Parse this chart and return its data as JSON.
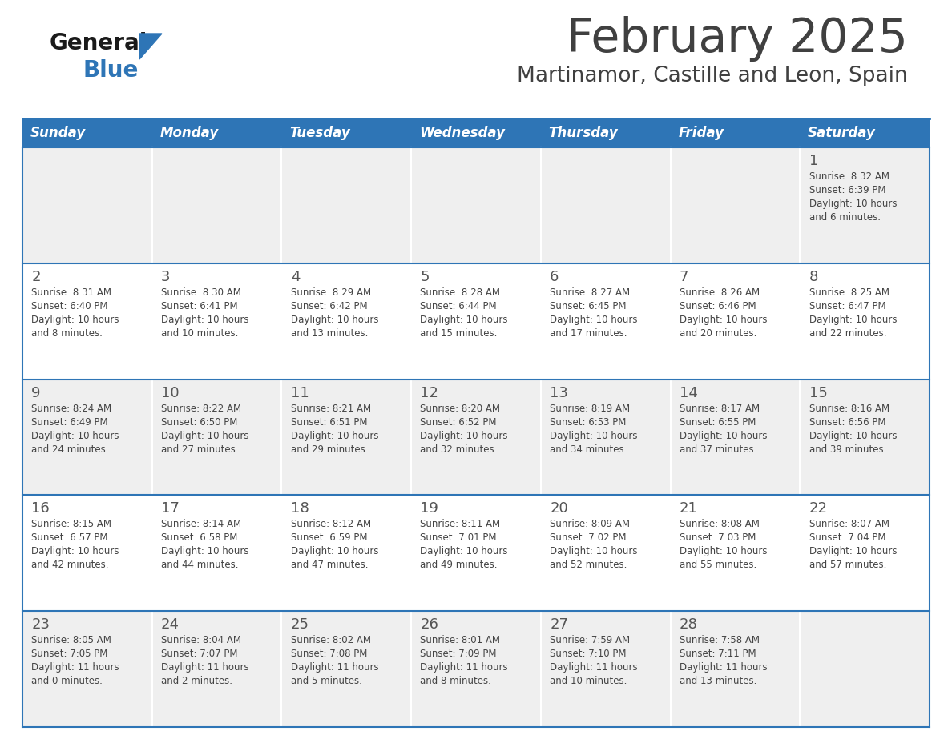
{
  "title": "February 2025",
  "subtitle": "Martinamor, Castille and Leon, Spain",
  "days_of_week": [
    "Sunday",
    "Monday",
    "Tuesday",
    "Wednesday",
    "Thursday",
    "Friday",
    "Saturday"
  ],
  "header_bg": "#2E75B6",
  "header_text_color": "#FFFFFF",
  "cell_bg_odd_row": "#EFEFEF",
  "cell_bg_even_row": "#FFFFFF",
  "cell_border_color": "#2E75B6",
  "title_color": "#404040",
  "subtitle_color": "#404040",
  "day_number_color": "#555555",
  "cell_text_color": "#444444",
  "logo_general_color": "#1A1A1A",
  "logo_blue_color": "#2E75B6",
  "weeks": [
    {
      "days": [
        {
          "day": null,
          "info": null
        },
        {
          "day": null,
          "info": null
        },
        {
          "day": null,
          "info": null
        },
        {
          "day": null,
          "info": null
        },
        {
          "day": null,
          "info": null
        },
        {
          "day": null,
          "info": null
        },
        {
          "day": 1,
          "info": "Sunrise: 8:32 AM\nSunset: 6:39 PM\nDaylight: 10 hours\nand 6 minutes."
        }
      ]
    },
    {
      "days": [
        {
          "day": 2,
          "info": "Sunrise: 8:31 AM\nSunset: 6:40 PM\nDaylight: 10 hours\nand 8 minutes."
        },
        {
          "day": 3,
          "info": "Sunrise: 8:30 AM\nSunset: 6:41 PM\nDaylight: 10 hours\nand 10 minutes."
        },
        {
          "day": 4,
          "info": "Sunrise: 8:29 AM\nSunset: 6:42 PM\nDaylight: 10 hours\nand 13 minutes."
        },
        {
          "day": 5,
          "info": "Sunrise: 8:28 AM\nSunset: 6:44 PM\nDaylight: 10 hours\nand 15 minutes."
        },
        {
          "day": 6,
          "info": "Sunrise: 8:27 AM\nSunset: 6:45 PM\nDaylight: 10 hours\nand 17 minutes."
        },
        {
          "day": 7,
          "info": "Sunrise: 8:26 AM\nSunset: 6:46 PM\nDaylight: 10 hours\nand 20 minutes."
        },
        {
          "day": 8,
          "info": "Sunrise: 8:25 AM\nSunset: 6:47 PM\nDaylight: 10 hours\nand 22 minutes."
        }
      ]
    },
    {
      "days": [
        {
          "day": 9,
          "info": "Sunrise: 8:24 AM\nSunset: 6:49 PM\nDaylight: 10 hours\nand 24 minutes."
        },
        {
          "day": 10,
          "info": "Sunrise: 8:22 AM\nSunset: 6:50 PM\nDaylight: 10 hours\nand 27 minutes."
        },
        {
          "day": 11,
          "info": "Sunrise: 8:21 AM\nSunset: 6:51 PM\nDaylight: 10 hours\nand 29 minutes."
        },
        {
          "day": 12,
          "info": "Sunrise: 8:20 AM\nSunset: 6:52 PM\nDaylight: 10 hours\nand 32 minutes."
        },
        {
          "day": 13,
          "info": "Sunrise: 8:19 AM\nSunset: 6:53 PM\nDaylight: 10 hours\nand 34 minutes."
        },
        {
          "day": 14,
          "info": "Sunrise: 8:17 AM\nSunset: 6:55 PM\nDaylight: 10 hours\nand 37 minutes."
        },
        {
          "day": 15,
          "info": "Sunrise: 8:16 AM\nSunset: 6:56 PM\nDaylight: 10 hours\nand 39 minutes."
        }
      ]
    },
    {
      "days": [
        {
          "day": 16,
          "info": "Sunrise: 8:15 AM\nSunset: 6:57 PM\nDaylight: 10 hours\nand 42 minutes."
        },
        {
          "day": 17,
          "info": "Sunrise: 8:14 AM\nSunset: 6:58 PM\nDaylight: 10 hours\nand 44 minutes."
        },
        {
          "day": 18,
          "info": "Sunrise: 8:12 AM\nSunset: 6:59 PM\nDaylight: 10 hours\nand 47 minutes."
        },
        {
          "day": 19,
          "info": "Sunrise: 8:11 AM\nSunset: 7:01 PM\nDaylight: 10 hours\nand 49 minutes."
        },
        {
          "day": 20,
          "info": "Sunrise: 8:09 AM\nSunset: 7:02 PM\nDaylight: 10 hours\nand 52 minutes."
        },
        {
          "day": 21,
          "info": "Sunrise: 8:08 AM\nSunset: 7:03 PM\nDaylight: 10 hours\nand 55 minutes."
        },
        {
          "day": 22,
          "info": "Sunrise: 8:07 AM\nSunset: 7:04 PM\nDaylight: 10 hours\nand 57 minutes."
        }
      ]
    },
    {
      "days": [
        {
          "day": 23,
          "info": "Sunrise: 8:05 AM\nSunset: 7:05 PM\nDaylight: 11 hours\nand 0 minutes."
        },
        {
          "day": 24,
          "info": "Sunrise: 8:04 AM\nSunset: 7:07 PM\nDaylight: 11 hours\nand 2 minutes."
        },
        {
          "day": 25,
          "info": "Sunrise: 8:02 AM\nSunset: 7:08 PM\nDaylight: 11 hours\nand 5 minutes."
        },
        {
          "day": 26,
          "info": "Sunrise: 8:01 AM\nSunset: 7:09 PM\nDaylight: 11 hours\nand 8 minutes."
        },
        {
          "day": 27,
          "info": "Sunrise: 7:59 AM\nSunset: 7:10 PM\nDaylight: 11 hours\nand 10 minutes."
        },
        {
          "day": 28,
          "info": "Sunrise: 7:58 AM\nSunset: 7:11 PM\nDaylight: 11 hours\nand 13 minutes."
        },
        {
          "day": null,
          "info": null
        }
      ]
    }
  ]
}
